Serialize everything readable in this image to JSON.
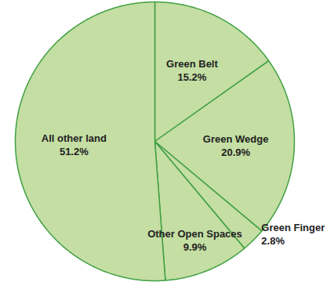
{
  "chart_data": {
    "type": "pie",
    "categories": [
      "Green Belt",
      "Green Wedge",
      "Green Finger",
      "Other Open Spaces",
      "All other land"
    ],
    "values": [
      15.2,
      20.9,
      2.8,
      9.9,
      51.2
    ],
    "value_labels": [
      "15.2%",
      "20.9%",
      "2.8%",
      "9.9%",
      "51.2%"
    ],
    "data_labels": true,
    "color": "#c4dea3"
  }
}
